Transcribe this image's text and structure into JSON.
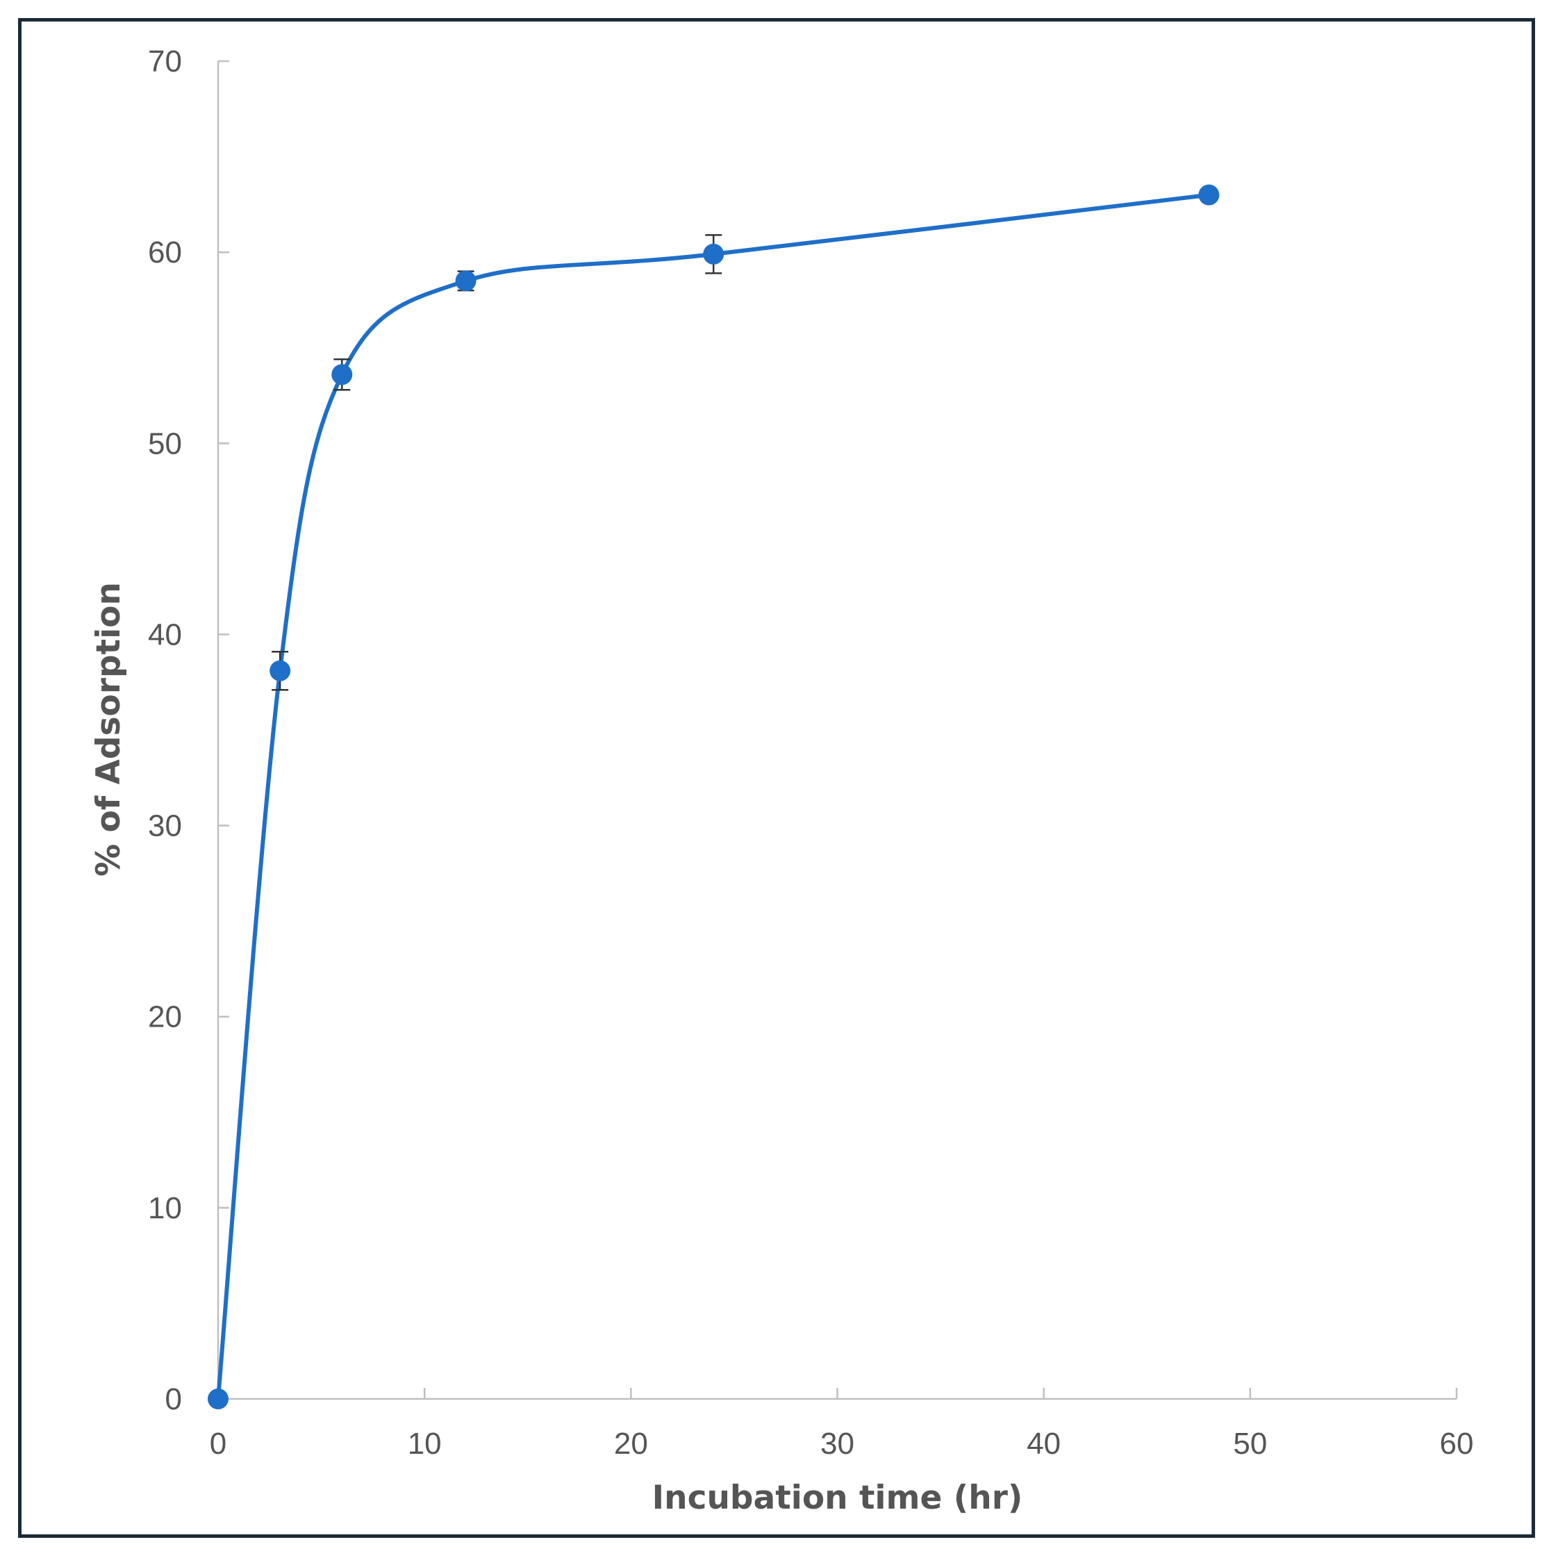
{
  "chart_data": {
    "type": "line",
    "title": "",
    "xlabel": "Incubation time (hr)",
    "ylabel": "% of Adsorption",
    "xlim": [
      0,
      60
    ],
    "ylim": [
      0,
      70
    ],
    "x_ticks": [
      "0",
      "10",
      "20",
      "30",
      "40",
      "50",
      "60"
    ],
    "y_ticks": [
      "0",
      "10",
      "20",
      "30",
      "40",
      "50",
      "60",
      "70"
    ],
    "grid": false,
    "legend": "none",
    "smooth": true,
    "series": [
      {
        "color": "#1f6fc8",
        "x": [
          0,
          3,
          6,
          12,
          24,
          48
        ],
        "values": [
          0,
          38.1,
          53.6,
          58.5,
          59.9,
          63.0
        ],
        "error": [
          0,
          1.0,
          0.8,
          0.5,
          1.0,
          0
        ]
      }
    ],
    "axis_color": "#bfbfbf",
    "errorbar_color": "#333333"
  }
}
